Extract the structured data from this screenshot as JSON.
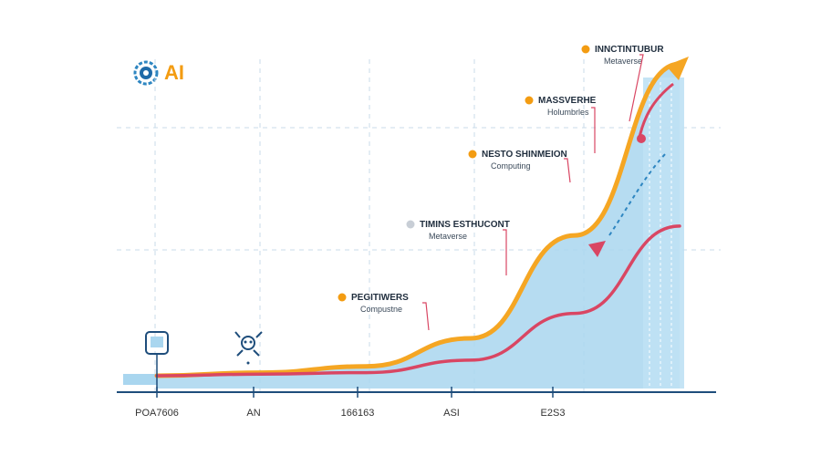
{
  "brand": {
    "text": "AI",
    "icon": "brain-gear-icon",
    "color": "#f39c12"
  },
  "colors": {
    "area": "#a9d6ef",
    "orange_line": "#f5a623",
    "red_line": "#d94663",
    "axis": "#1e4d7b",
    "grid": "#c9dbe9",
    "dashed": "#2e86c1"
  },
  "chart_data": {
    "type": "area",
    "title": "",
    "xlabel": "",
    "ylabel": "",
    "x_labels": [
      "POA7606",
      "AN",
      "166163",
      "ASI",
      "E2S3"
    ],
    "grid": true,
    "series": [
      {
        "color": "#f5a623",
        "values": [
          0,
          1,
          3,
          12,
          45,
          100
        ]
      },
      {
        "color": "#d94663",
        "values": [
          0,
          0.5,
          1,
          5,
          20,
          48
        ]
      }
    ],
    "annotations": [
      {
        "title": "INNCTINTUBUR",
        "subtitle": "Metaverse",
        "marker_color": "#f39c12"
      },
      {
        "title": "MASSVERHE",
        "subtitle": "Holumbrles",
        "marker_color": "#f39c12"
      },
      {
        "title": "NESTO SHINMEION",
        "subtitle": "Computing",
        "marker_color": "#f39c12"
      },
      {
        "title": "TIMINS ESTHUCONT",
        "subtitle": "Metaverse",
        "marker_color": "#c8ced6"
      },
      {
        "title": "PEGITIWERS",
        "subtitle": "Compustne",
        "marker_color": "#f39c12"
      }
    ],
    "icons": [
      "monitor-icon",
      "robot-icon"
    ]
  }
}
